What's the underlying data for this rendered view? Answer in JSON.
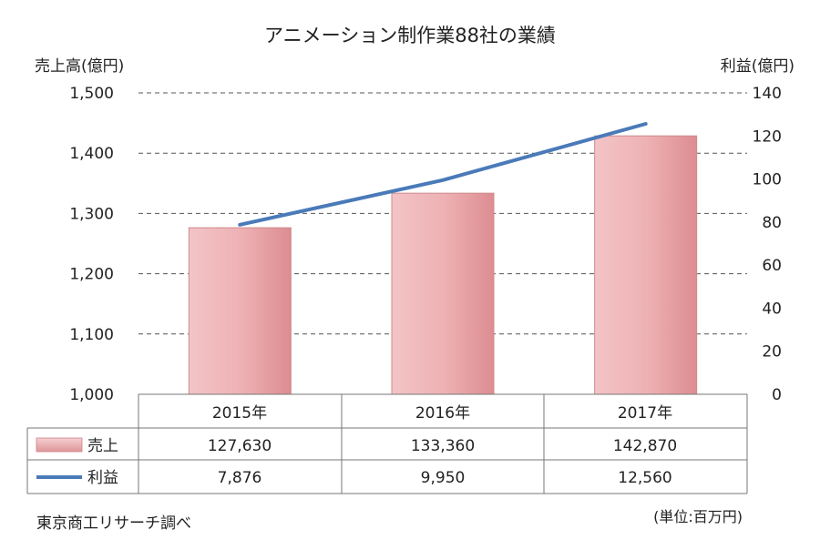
{
  "chart_data": {
    "type": "bar",
    "title": "アニメーション制作業88社の業績",
    "categories": [
      "2015年",
      "2016年",
      "2017年"
    ],
    "left_axis": {
      "label": "売上高(億円)",
      "ylim": [
        1000,
        1500
      ],
      "ticks": [
        1000,
        1100,
        1200,
        1300,
        1400,
        1500
      ],
      "tick_labels": [
        "1,000",
        "1,100",
        "1,200",
        "1,300",
        "1,400",
        "1,500"
      ]
    },
    "right_axis": {
      "label": "利益(億円)",
      "ylim": [
        0,
        140
      ],
      "ticks": [
        0,
        20,
        40,
        60,
        80,
        100,
        120,
        140
      ],
      "tick_labels": [
        "0",
        "20",
        "40",
        "60",
        "80",
        "100",
        "120",
        "140"
      ]
    },
    "series": [
      {
        "name": "売上",
        "type": "bar",
        "axis": "left",
        "color": "#e8a3a6",
        "values_oku": [
          1276.3,
          1333.6,
          1428.7
        ],
        "table_values": [
          "127,630",
          "133,360",
          "142,870"
        ]
      },
      {
        "name": "利益",
        "type": "line",
        "axis": "right",
        "color": "#4a7ab8",
        "values_oku": [
          78.76,
          99.5,
          125.6
        ],
        "table_values": [
          "7,876",
          "9,950",
          "12,560"
        ]
      }
    ],
    "grid": true,
    "source": "東京商工リサーチ調べ",
    "unit_note": "(単位:百万円)"
  }
}
